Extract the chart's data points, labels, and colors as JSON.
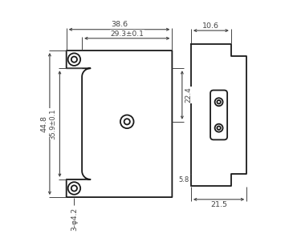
{
  "bg_color": "#ffffff",
  "line_color": "#1a1a1a",
  "dim_color": "#444444",
  "fig_width": 3.65,
  "fig_height": 2.92,
  "dpi": 100,
  "dimensions": {
    "top_width_38_6": "38.6",
    "inner_width_29_3": "29.3±0.1",
    "height_left_44_8": "44.8",
    "height_inner_35_9": "35.9±0.1",
    "right_dim_22_4": "22.4",
    "hole_label": "3-φ4.2",
    "side_width_10_6": "10.6",
    "side_bottom_5_8": "5.8",
    "side_total_21_5": "21.5"
  }
}
